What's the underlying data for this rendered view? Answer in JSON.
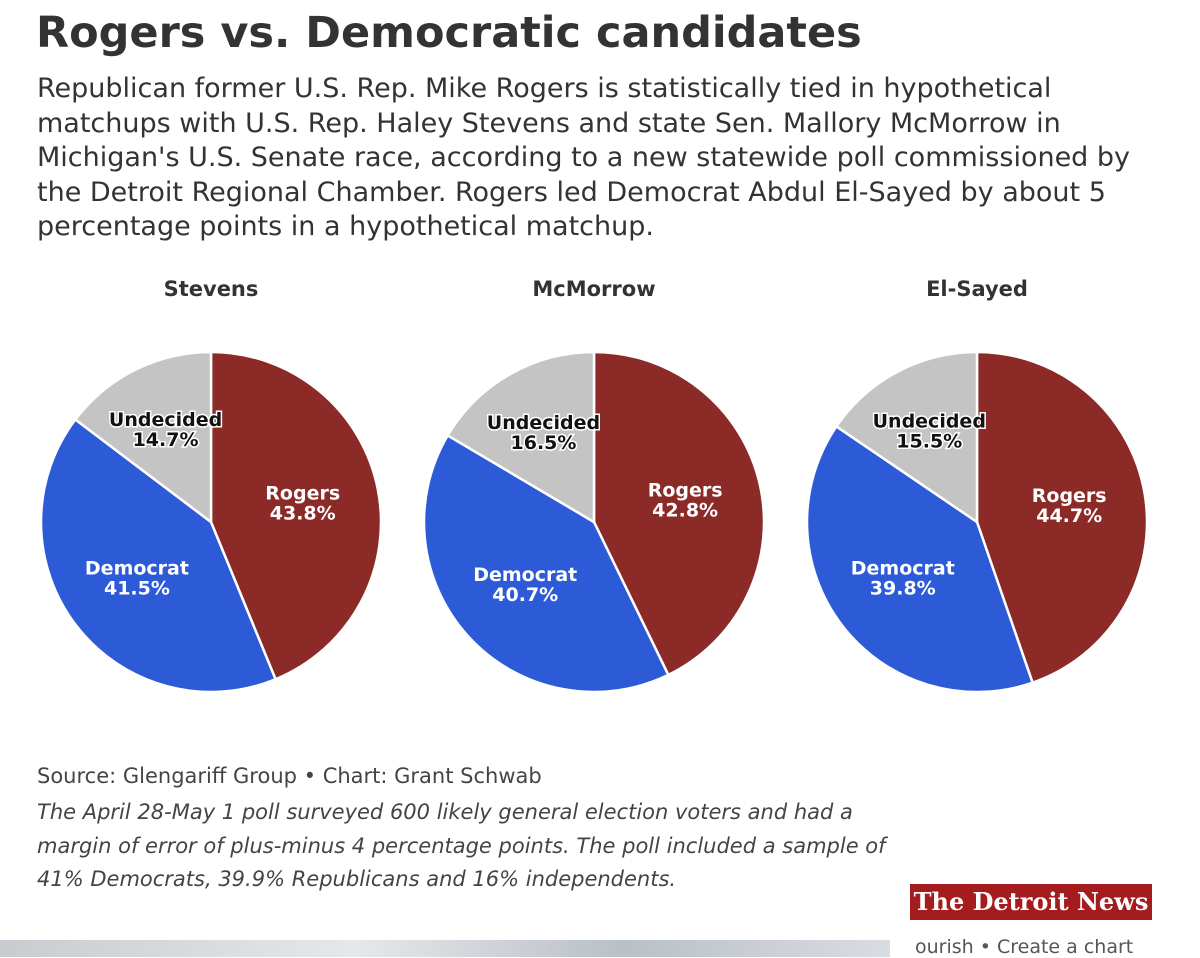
{
  "title": "Rogers vs. Democratic candidates",
  "subtitle": "Republican former U.S. Rep. Mike Rogers is statistically tied in hypothetical matchups with U.S. Rep. Haley Stevens and state Sen. Mallory McMorrow in Michigan's U.S. Senate race, according to a new statewide poll commissioned by the Detroit Regional Chamber. Rogers led Democrat Abdul El-Sayed by about 5 percentage points in a hypothetical matchup.",
  "source": "Source: Glengariff Group • Chart: Grant Schwab",
  "note": "The April 28-May 1 poll surveyed 600 likely general election voters and had a margin of error of plus-minus 4 percentage points. The poll included a sample of 41% Democrats, 39.9% Republicans and 16% independents.",
  "logo": "The Detroit News",
  "footer": "ourish • Create a chart",
  "chart_data": [
    {
      "type": "pie",
      "title": "Stevens",
      "categories": [
        "Rogers",
        "Democrat",
        "Undecided"
      ],
      "values": [
        43.8,
        41.5,
        14.7
      ],
      "value_labels": [
        "43.8%",
        "41.5%",
        "14.7%"
      ],
      "colors": [
        "#8b2a27",
        "#2d5bd8",
        "#c4c4c4"
      ]
    },
    {
      "type": "pie",
      "title": "McMorrow",
      "categories": [
        "Rogers",
        "Democrat",
        "Undecided"
      ],
      "values": [
        42.8,
        40.7,
        16.5
      ],
      "value_labels": [
        "42.8%",
        "40.7%",
        "16.5%"
      ],
      "colors": [
        "#8b2a27",
        "#2d5bd8",
        "#c4c4c4"
      ]
    },
    {
      "type": "pie",
      "title": "El-Sayed",
      "categories": [
        "Rogers",
        "Democrat",
        "Undecided"
      ],
      "values": [
        44.7,
        39.8,
        15.5
      ],
      "value_labels": [
        "44.7%",
        "39.8%",
        "15.5%"
      ],
      "colors": [
        "#8b2a27",
        "#2d5bd8",
        "#c4c4c4"
      ]
    }
  ]
}
